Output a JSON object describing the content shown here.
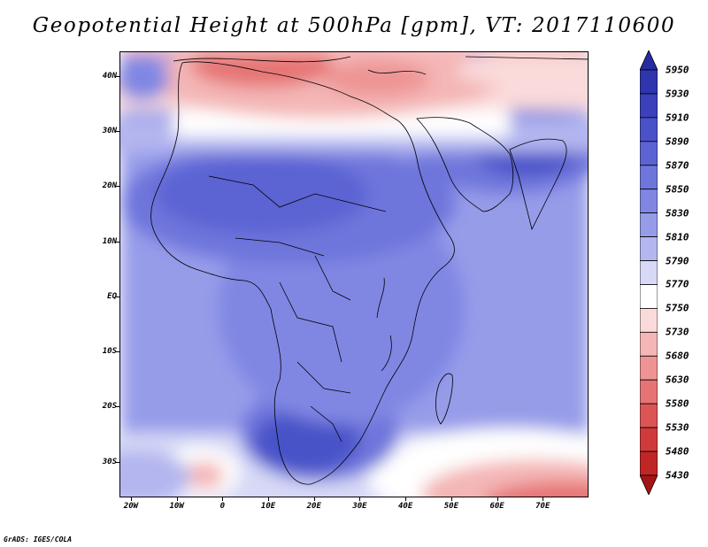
{
  "title": "Geopotential Height at 500hPa [gpm], VT: 2017110600",
  "map": {
    "lat_labels": [
      "40N",
      "30N",
      "20N",
      "10N",
      "EQ",
      "10S",
      "20S",
      "30S"
    ],
    "lat_values": [
      40,
      30,
      20,
      10,
      0,
      -10,
      -20,
      -30
    ],
    "lon_labels": [
      "20W",
      "10W",
      "0",
      "10E",
      "20E",
      "30E",
      "40E",
      "50E",
      "60E",
      "70E"
    ],
    "lon_values": [
      -20,
      -10,
      0,
      10,
      20,
      30,
      40,
      50,
      60,
      70
    ],
    "extent": {
      "lon": [
        -22.5,
        80
      ],
      "lat": [
        -36.5,
        44.5
      ]
    },
    "region": "Africa"
  },
  "legend": {
    "levels": [
      "5950",
      "5930",
      "5910",
      "5890",
      "5870",
      "5850",
      "5830",
      "5810",
      "5790",
      "5770",
      "5750",
      "5730",
      "5680",
      "5630",
      "5580",
      "5530",
      "5480",
      "5430"
    ],
    "colors": [
      "#262b9e",
      "#2e35ad",
      "#3a41bb",
      "#4a52c8",
      "#5c64d3",
      "#6e76dc",
      "#8087e3",
      "#979ce9",
      "#b3b6ef",
      "#d7d9f6",
      "#ffffff",
      "#fadada",
      "#f4b6b6",
      "#ee9494",
      "#e67474",
      "#dd5454",
      "#d13a3a",
      "#c12626",
      "#a51414"
    ]
  },
  "credit": "GrADS: IGES/COLA"
}
